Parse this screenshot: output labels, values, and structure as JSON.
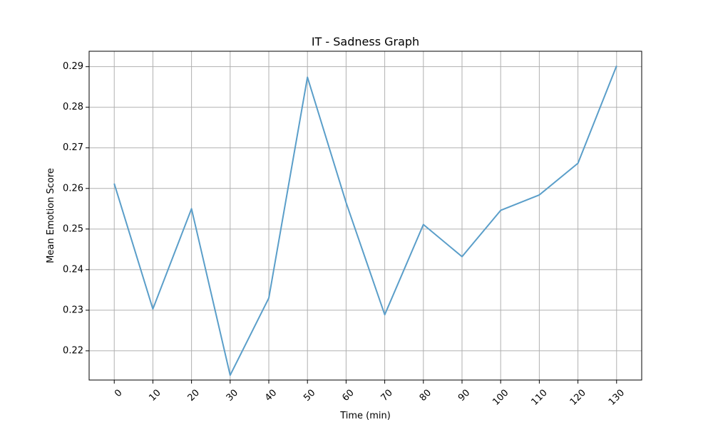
{
  "chart_data": {
    "type": "line",
    "title": "IT - Sadness Graph",
    "xlabel": "Time (min)",
    "ylabel": "Mean Emotion Score",
    "x": [
      0,
      10,
      20,
      30,
      40,
      50,
      60,
      70,
      80,
      90,
      100,
      110,
      120,
      130
    ],
    "x_tick_labels": [
      "0",
      "10",
      "20",
      "30",
      "40",
      "50",
      "60",
      "70",
      "80",
      "90",
      "100",
      "110",
      "120",
      "130"
    ],
    "y_ticks": [
      0.22,
      0.23,
      0.24,
      0.25,
      0.26,
      0.27,
      0.28,
      0.29
    ],
    "y_tick_labels": [
      "0.22",
      "0.23",
      "0.24",
      "0.25",
      "0.26",
      "0.27",
      "0.28",
      "0.29"
    ],
    "series": [
      {
        "values": [
          0.2612,
          0.2303,
          0.255,
          0.214,
          0.233,
          0.2874,
          0.2565,
          0.2289,
          0.2511,
          0.2432,
          0.2546,
          0.2584,
          0.2662,
          0.2902
        ],
        "color": "#5a9ec9"
      }
    ],
    "xlim": [
      -6.5,
      136.5
    ],
    "ylim": [
      0.2128,
      0.2938
    ],
    "grid": true,
    "x_tick_rotation": 45
  }
}
